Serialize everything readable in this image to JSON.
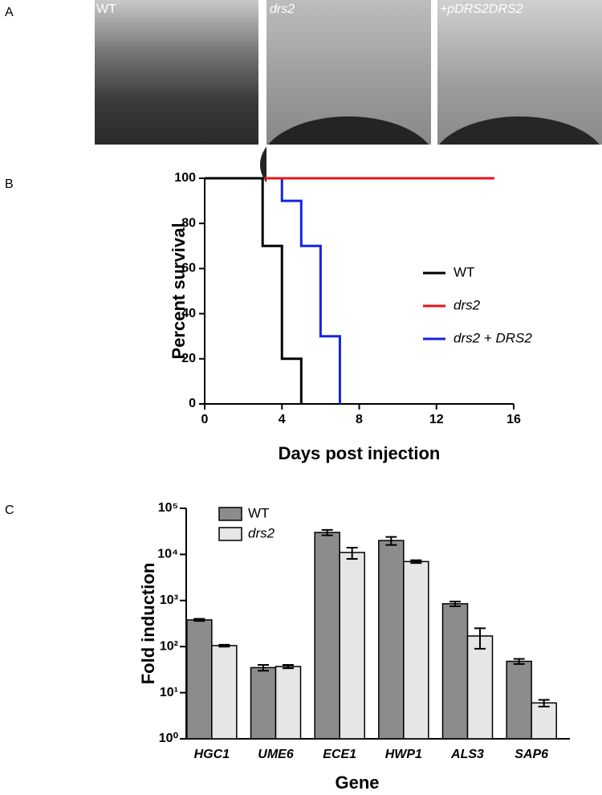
{
  "panels": [
    "A",
    "B",
    "C"
  ],
  "images": [
    "WT",
    "drs2",
    "+pDRS2DRS2"
  ],
  "chart_data": [
    {
      "type": "step",
      "xlabel": "Days post injection",
      "ylabel": "Percent survival",
      "xlim": [
        0,
        16
      ],
      "xticks": [
        0,
        4,
        8,
        12,
        16
      ],
      "ylim": [
        0,
        100
      ],
      "yticks": [
        0,
        20,
        40,
        60,
        80,
        100
      ],
      "series": [
        {
          "name": "WT",
          "color": "#000000",
          "x": [
            0,
            3,
            4,
            5
          ],
          "values": [
            100,
            70,
            20,
            0
          ]
        },
        {
          "name": "drs2",
          "color": "#e8131b",
          "x": [
            0,
            15
          ],
          "values": [
            100,
            100
          ]
        },
        {
          "name": "drs2 + DRS2",
          "color": "#1423e6",
          "x": [
            0,
            4,
            5,
            6,
            7
          ],
          "values": [
            100,
            90,
            70,
            30,
            0
          ]
        }
      ]
    },
    {
      "type": "bar",
      "xlabel": "Gene",
      "ylabel": "Fold induction",
      "log_scale": true,
      "categories": [
        "HGC1",
        "UME6",
        "ECE1",
        "HWP1",
        "ALS3",
        "SAP6"
      ],
      "ylim": [
        1,
        100000
      ],
      "yticks": [
        {
          "value": 1,
          "label": "10⁰"
        },
        {
          "value": 10,
          "label": "10¹"
        },
        {
          "value": 100,
          "label": "10²"
        },
        {
          "value": 1000,
          "label": "10³"
        },
        {
          "value": 10000,
          "label": "10⁴"
        },
        {
          "value": 100000,
          "label": "10⁵"
        }
      ],
      "series": [
        {
          "name": "WT",
          "color": "#8c8c8c",
          "values": [
            380,
            35,
            30000,
            20000,
            850,
            48
          ],
          "errors": [
            20,
            5,
            4000,
            4000,
            100,
            6
          ]
        },
        {
          "name": "drs2",
          "color": "#e6e6e6",
          "values": [
            105,
            37,
            11000,
            7000,
            170,
            6
          ],
          "errors": [
            5,
            3,
            3000,
            500,
            80,
            1
          ]
        }
      ]
    }
  ]
}
